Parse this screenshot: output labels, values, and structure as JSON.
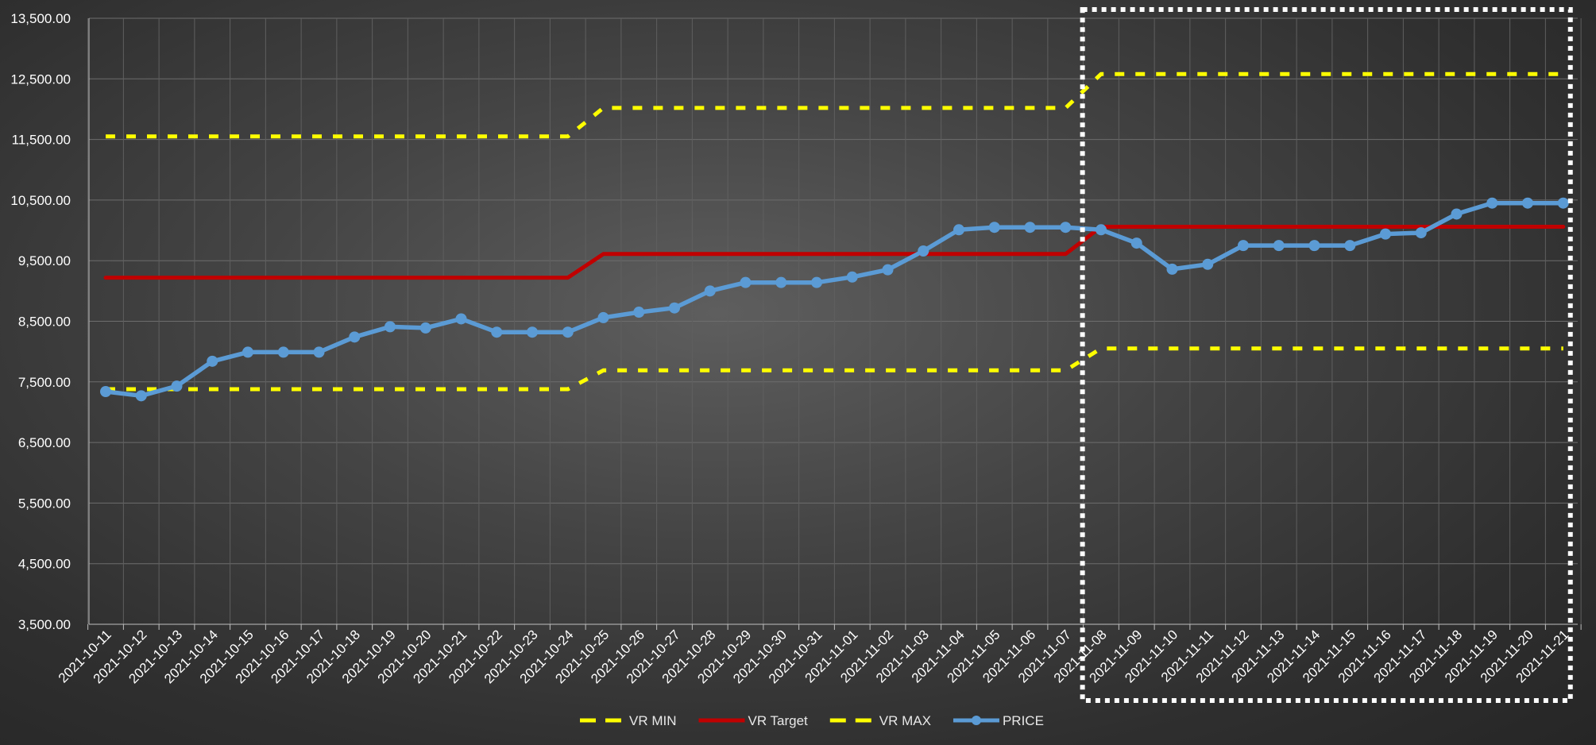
{
  "chart_data": {
    "type": "line",
    "x": [
      "2021-10-11",
      "2021-10-12",
      "2021-10-13",
      "2021-10-14",
      "2021-10-15",
      "2021-10-16",
      "2021-10-17",
      "2021-10-18",
      "2021-10-19",
      "2021-10-20",
      "2021-10-21",
      "2021-10-22",
      "2021-10-23",
      "2021-10-24",
      "2021-10-25",
      "2021-10-26",
      "2021-10-27",
      "2021-10-28",
      "2021-10-29",
      "2021-10-30",
      "2021-10-31",
      "2021-11-01",
      "2021-11-02",
      "2021-11-03",
      "2021-11-04",
      "2021-11-05",
      "2021-11-06",
      "2021-11-07",
      "2021-11-08",
      "2021-11-09",
      "2021-11-10",
      "2021-11-11",
      "2021-11-12",
      "2021-11-13",
      "2021-11-14",
      "2021-11-15",
      "2021-11-16",
      "2021-11-17",
      "2021-11-18",
      "2021-11-19",
      "2021-11-20",
      "2021-11-21"
    ],
    "ylim": [
      3500,
      13500
    ],
    "yticks": [
      "3,500.00",
      "4,500.00",
      "5,500.00",
      "6,500.00",
      "7,500.00",
      "8,500.00",
      "9,500.00",
      "10,500.00",
      "11,500.00",
      "12,500.00",
      "13,500.00"
    ],
    "grid": true,
    "legend_position": "bottom",
    "highlight_box": {
      "from": "2021-11-08",
      "to": "2021-11-21",
      "style": "white dotted"
    },
    "series": [
      {
        "name": "VR MIN",
        "color": "#ffff00",
        "style": "dashed",
        "values": [
          7380,
          7380,
          7380,
          7380,
          7380,
          7380,
          7380,
          7380,
          7380,
          7380,
          7380,
          7380,
          7380,
          7380,
          7690,
          7690,
          7690,
          7690,
          7690,
          7690,
          7690,
          7690,
          7690,
          7690,
          7690,
          7690,
          7690,
          7690,
          8050,
          8050,
          8050,
          8050,
          8050,
          8050,
          8050,
          8050,
          8050,
          8050,
          8050,
          8050,
          8050,
          8050
        ]
      },
      {
        "name": "VR Target",
        "color": "#c00000",
        "style": "solid",
        "values": [
          9220,
          9220,
          9220,
          9220,
          9220,
          9220,
          9220,
          9220,
          9220,
          9220,
          9220,
          9220,
          9220,
          9220,
          9610,
          9610,
          9610,
          9610,
          9610,
          9610,
          9610,
          9610,
          9610,
          9610,
          9610,
          9610,
          9610,
          9610,
          10060,
          10060,
          10060,
          10060,
          10060,
          10060,
          10060,
          10060,
          10060,
          10060,
          10060,
          10060,
          10060,
          10060
        ]
      },
      {
        "name": "VR MAX",
        "color": "#ffff00",
        "style": "dashed",
        "values": [
          11550,
          11550,
          11550,
          11550,
          11550,
          11550,
          11550,
          11550,
          11550,
          11550,
          11550,
          11550,
          11550,
          11550,
          12020,
          12020,
          12020,
          12020,
          12020,
          12020,
          12020,
          12020,
          12020,
          12020,
          12020,
          12020,
          12020,
          12020,
          12580,
          12580,
          12580,
          12580,
          12580,
          12580,
          12580,
          12580,
          12580,
          12580,
          12580,
          12580,
          12580,
          12580
        ]
      },
      {
        "name": "PRICE",
        "color": "#5b9bd5",
        "style": "solid-markers",
        "values": [
          7340,
          7270,
          7430,
          7840,
          7990,
          7990,
          7990,
          8240,
          8410,
          8390,
          8540,
          8320,
          8320,
          8320,
          8560,
          8650,
          8720,
          9000,
          9140,
          9140,
          9140,
          9230,
          9350,
          9660,
          10010,
          10050,
          10050,
          10050,
          10010,
          9790,
          9360,
          9440,
          9750,
          9750,
          9750,
          9750,
          9940,
          9960,
          10270,
          10450,
          10450,
          10450
        ]
      }
    ]
  }
}
